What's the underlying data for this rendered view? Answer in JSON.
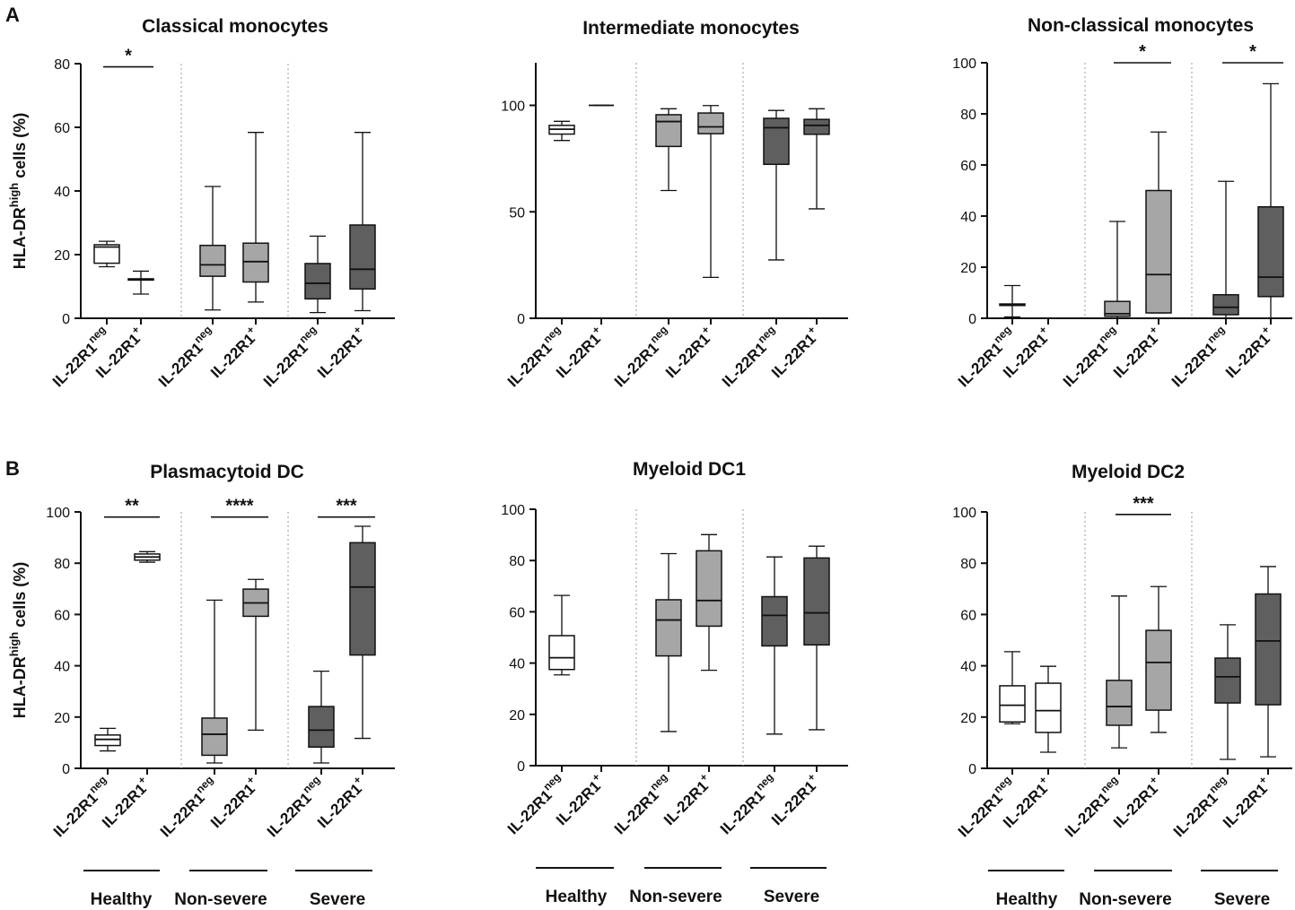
{
  "figure": {
    "panel_letters": [
      "A",
      "B"
    ],
    "ylabel_main": "HLA-DR",
    "ylabel_sup": "high",
    "ylabel_tail": " cells (%)",
    "group_labels": [
      "Healthy",
      "Non-severe",
      "Severe"
    ],
    "category_main": [
      "IL-22R1",
      "IL-22R1"
    ],
    "category_sup": [
      "neg",
      "+"
    ],
    "colors": {
      "healthy": "#ffffff",
      "non_severe": "#a6a6a6",
      "severe": "#5f5f5f",
      "stroke": "#111111",
      "separator": "#999999"
    }
  },
  "chart_data": [
    {
      "type": "box",
      "panel": "A",
      "title": "Classical monocytes",
      "ylim": [
        0,
        80
      ],
      "yticks": [
        0,
        20,
        40,
        60,
        80
      ],
      "categories": [
        "IL-22R1 neg",
        "IL-22R1 +",
        "IL-22R1 neg",
        "IL-22R1 +",
        "IL-22R1 neg",
        "IL-22R1 +"
      ],
      "groups": [
        "Healthy",
        "Healthy",
        "Non-severe",
        "Non-severe",
        "Severe",
        "Severe"
      ],
      "boxes": [
        {
          "min": 16.2,
          "q1": 17.3,
          "median": 22.4,
          "q3": 23.1,
          "max": 24.2
        },
        {
          "min": 7.6,
          "q1": 12.0,
          "median": 12.2,
          "q3": 12.4,
          "max": 14.8
        },
        {
          "min": 2.6,
          "q1": 13.2,
          "median": 16.8,
          "q3": 22.9,
          "max": 41.4
        },
        {
          "min": 5.1,
          "q1": 11.4,
          "median": 17.8,
          "q3": 23.6,
          "max": 58.4
        },
        {
          "min": 1.8,
          "q1": 6.1,
          "median": 11.0,
          "q3": 17.2,
          "max": 25.8
        },
        {
          "min": 2.4,
          "q1": 9.2,
          "median": 15.4,
          "q3": 29.3,
          "max": 58.4
        }
      ],
      "significance": [
        {
          "from": 0,
          "to": 1,
          "label": "*",
          "y": 79
        }
      ]
    },
    {
      "type": "box",
      "panel": "A",
      "title": "Intermediate monocytes",
      "ylim": [
        0,
        120
      ],
      "yticks": [
        0,
        50,
        100
      ],
      "categories": [
        "IL-22R1 neg",
        "IL-22R1 +",
        "IL-22R1 neg",
        "IL-22R1 +",
        "IL-22R1 neg",
        "IL-22R1 +"
      ],
      "groups": [
        "Healthy",
        "Healthy",
        "Non-severe",
        "Non-severe",
        "Severe",
        "Severe"
      ],
      "boxes": [
        {
          "min": 83.5,
          "q1": 86.5,
          "median": 88.8,
          "q3": 90.6,
          "max": 92.5
        },
        {
          "min": 100,
          "q1": 100,
          "median": 100,
          "q3": 100,
          "max": 100
        },
        {
          "min": 60.0,
          "q1": 80.7,
          "median": 92.4,
          "q3": 95.6,
          "max": 98.4
        },
        {
          "min": 19.2,
          "q1": 86.7,
          "median": 89.9,
          "q3": 96.4,
          "max": 99.9
        },
        {
          "min": 27.4,
          "q1": 72.3,
          "median": 89.5,
          "q3": 93.9,
          "max": 97.6
        },
        {
          "min": 51.4,
          "q1": 86.4,
          "median": 90.6,
          "q3": 93.4,
          "max": 98.4
        }
      ],
      "significance": []
    },
    {
      "type": "box",
      "panel": "A",
      "title": "Non-classical monocytes",
      "ylim": [
        0,
        100
      ],
      "yticks": [
        0,
        20,
        40,
        60,
        80,
        100
      ],
      "categories": [
        "IL-22R1 neg",
        "IL-22R1 +",
        "IL-22R1 neg",
        "IL-22R1 +",
        "IL-22R1 neg",
        "IL-22R1 +"
      ],
      "groups": [
        "Healthy",
        "Healthy",
        "Non-severe",
        "Non-severe",
        "Severe",
        "Severe"
      ],
      "boxes": [
        {
          "min": 0.5,
          "q1": 5.0,
          "median": 5.3,
          "q3": 5.6,
          "max": 12.8
        },
        {
          "min": 0,
          "q1": 0,
          "median": 0,
          "q3": 0,
          "max": 0
        },
        {
          "min": 0,
          "q1": 0.8,
          "median": 1.8,
          "q3": 6.6,
          "max": 37.9
        },
        {
          "min": 2.1,
          "q1": 2.1,
          "median": 17.1,
          "q3": 50.0,
          "max": 72.9
        },
        {
          "min": 0,
          "q1": 1.4,
          "median": 4.3,
          "q3": 9.2,
          "max": 53.6
        },
        {
          "min": 0,
          "q1": 8.5,
          "median": 16.1,
          "q3": 43.6,
          "max": 91.8
        }
      ],
      "significance": [
        {
          "from": 2,
          "to": 3,
          "label": "*",
          "y": 100
        },
        {
          "from": 4,
          "to": 5,
          "label": "*",
          "y": 100
        }
      ]
    },
    {
      "type": "box",
      "panel": "B",
      "title": "Plasmacytoid DC",
      "ylim": [
        0,
        100
      ],
      "yticks": [
        0,
        20,
        40,
        60,
        80,
        100
      ],
      "categories": [
        "IL-22R1 neg",
        "IL-22R1 +",
        "IL-22R1 neg",
        "IL-22R1 +",
        "IL-22R1 neg",
        "IL-22R1 +"
      ],
      "groups": [
        "Healthy",
        "Healthy",
        "Non-severe",
        "Non-severe",
        "Severe",
        "Severe"
      ],
      "boxes": [
        {
          "min": 6.8,
          "q1": 8.9,
          "median": 11.3,
          "q3": 13.0,
          "max": 15.6
        },
        {
          "min": 80.4,
          "q1": 81.2,
          "median": 82.4,
          "q3": 83.6,
          "max": 84.5
        },
        {
          "min": 2.1,
          "q1": 5.1,
          "median": 13.3,
          "q3": 19.6,
          "max": 65.6
        },
        {
          "min": 14.9,
          "q1": 59.3,
          "median": 64.5,
          "q3": 69.9,
          "max": 73.7
        },
        {
          "min": 2.1,
          "q1": 8.3,
          "median": 14.9,
          "q3": 24.1,
          "max": 37.9
        },
        {
          "min": 11.7,
          "q1": 44.2,
          "median": 70.7,
          "q3": 88.0,
          "max": 94.4
        }
      ],
      "significance": [
        {
          "from": 0,
          "to": 1,
          "label": "**",
          "y": 98
        },
        {
          "from": 2,
          "to": 3,
          "label": "****",
          "y": 98
        },
        {
          "from": 4,
          "to": 5,
          "label": "***",
          "y": 98
        }
      ]
    },
    {
      "type": "box",
      "panel": "B",
      "title": "Myeloid DC1",
      "ylim": [
        0,
        100
      ],
      "yticks": [
        0,
        20,
        40,
        60,
        80,
        100
      ],
      "categories": [
        "IL-22R1 neg",
        "IL-22R1 +",
        "IL-22R1 neg",
        "IL-22R1 +",
        "IL-22R1 neg",
        "IL-22R1 +"
      ],
      "groups": [
        "Healthy",
        "Healthy",
        "Non-severe",
        "Non-severe",
        "Severe",
        "Severe"
      ],
      "boxes": [
        {
          "min": 35.4,
          "q1": 37.5,
          "median": 42.1,
          "q3": 50.7,
          "max": 66.4
        },
        null,
        {
          "min": 13.3,
          "q1": 42.8,
          "median": 56.8,
          "q3": 64.7,
          "max": 82.7
        },
        {
          "min": 37.2,
          "q1": 54.4,
          "median": 64.4,
          "q3": 83.8,
          "max": 90.1
        },
        {
          "min": 12.3,
          "q1": 46.7,
          "median": 58.6,
          "q3": 65.9,
          "max": 81.4
        },
        {
          "min": 14.0,
          "q1": 47.1,
          "median": 59.6,
          "q3": 81.0,
          "max": 85.6
        }
      ],
      "significance": []
    },
    {
      "type": "box",
      "panel": "B",
      "title": "Myeloid DC2",
      "ylim": [
        0,
        100
      ],
      "yticks": [
        0,
        20,
        40,
        60,
        80,
        100
      ],
      "categories": [
        "IL-22R1 neg",
        "IL-22R1 +",
        "IL-22R1 neg",
        "IL-22R1 +",
        "IL-22R1 neg",
        "IL-22R1 +"
      ],
      "groups": [
        "Healthy",
        "Healthy",
        "Non-severe",
        "Non-severe",
        "Severe",
        "Severe"
      ],
      "boxes": [
        {
          "min": 17.4,
          "q1": 18.1,
          "median": 24.6,
          "q3": 32.2,
          "max": 45.5
        },
        {
          "min": 6.3,
          "q1": 14.0,
          "median": 22.5,
          "q3": 33.2,
          "max": 39.8
        },
        {
          "min": 8.0,
          "q1": 16.8,
          "median": 24.1,
          "q3": 34.3,
          "max": 67.2
        },
        {
          "min": 14.0,
          "q1": 22.7,
          "median": 41.3,
          "q3": 53.8,
          "max": 70.9
        },
        {
          "min": 3.5,
          "q1": 25.5,
          "median": 35.7,
          "q3": 43.0,
          "max": 56.0
        },
        {
          "min": 4.5,
          "q1": 24.8,
          "median": 49.7,
          "q3": 68.0,
          "max": 78.7
        }
      ],
      "significance": [
        {
          "from": 2,
          "to": 3,
          "label": "***",
          "y": 99
        }
      ]
    }
  ]
}
